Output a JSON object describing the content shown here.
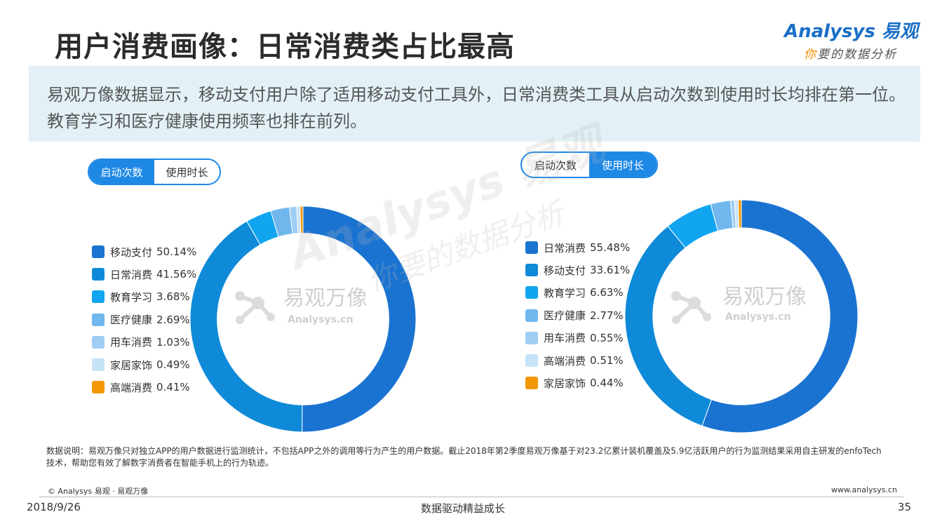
{
  "title": "用户消费画像：日常消费类占比最高",
  "logo": {
    "brand": "Analysys 易观",
    "slogan_first": "你",
    "slogan_rest": "要的数据分析"
  },
  "summary": "易观万像数据显示，移动支付用户除了适用移动支付工具外，日常消费类工具从启动次数到使用时长均排在第一位。教育学习和医疗健康使用频率也排在前列。",
  "toggles": [
    {
      "options": [
        "启动次数",
        "使用时长"
      ],
      "active": 0
    },
    {
      "options": [
        "启动次数",
        "使用时长"
      ],
      "active": 1
    }
  ],
  "colors": {
    "toggle_accent": "#1e88e5",
    "summary_bg": "#e3f1f7"
  },
  "chart_data": [
    {
      "type": "pie",
      "donut": true,
      "metric": "启动次数",
      "slices": [
        {
          "label": "移动支付",
          "value": 50.14,
          "display": "50.14%",
          "color": "#1a73d1"
        },
        {
          "label": "日常消费",
          "value": 41.56,
          "display": "41.56%",
          "color": "#0e8ad8"
        },
        {
          "label": "教育学习",
          "value": 3.68,
          "display": "3.68%",
          "color": "#12a5ef"
        },
        {
          "label": "医疗健康",
          "value": 2.69,
          "display": "2.69%",
          "color": "#70b7ee"
        },
        {
          "label": "用车消费",
          "value": 1.03,
          "display": "1.03%",
          "color": "#9fcdf4"
        },
        {
          "label": "家居家饰",
          "value": 0.49,
          "display": "0.49%",
          "color": "#c7e3f7"
        },
        {
          "label": "高端消费",
          "value": 0.41,
          "display": "0.41%",
          "color": "#f39800"
        }
      ]
    },
    {
      "type": "pie",
      "donut": true,
      "metric": "使用时长",
      "slices": [
        {
          "label": "日常消费",
          "value": 55.48,
          "display": "55.48%",
          "color": "#1a73d1"
        },
        {
          "label": "移动支付",
          "value": 33.61,
          "display": "33.61%",
          "color": "#0e8ad8"
        },
        {
          "label": "教育学习",
          "value": 6.63,
          "display": "6.63%",
          "color": "#12a5ef"
        },
        {
          "label": "医疗健康",
          "value": 2.77,
          "display": "2.77%",
          "color": "#70b7ee"
        },
        {
          "label": "用车消费",
          "value": 0.55,
          "display": "0.55%",
          "color": "#9fcdf4"
        },
        {
          "label": "高端消费",
          "value": 0.51,
          "display": "0.51%",
          "color": "#c7e3f7"
        },
        {
          "label": "家居家饰",
          "value": 0.44,
          "display": "0.44%",
          "color": "#f39800"
        }
      ]
    }
  ],
  "watermarks": [
    {
      "brand_cn": "易观万像",
      "brand_en": "Analysys.cn"
    },
    {
      "brand_cn": "易观万像",
      "brand_en": "Analysys.cn"
    }
  ],
  "center_watermark": {
    "line1": "Analysys 易观",
    "line2": "你要的数据分析"
  },
  "footnote": "数据说明：易观万像只对独立APP的用户数据进行监测统计，不包括APP之外的调用等行为产生的用户数据。截止2018年第2季度易观万像基于对23.2亿累计装机覆盖及5.9亿活跃用户的行为监测结果采用自主研发的enfoTech技术，帮助您有效了解数字消费者在智能手机上的行为轨迹。",
  "copyright": "© Analysys 易观 · 易观万像",
  "website": "www.analysys.cn",
  "date": "2018/9/26",
  "tagline": "数据驱动精益成长",
  "page_number": "35"
}
